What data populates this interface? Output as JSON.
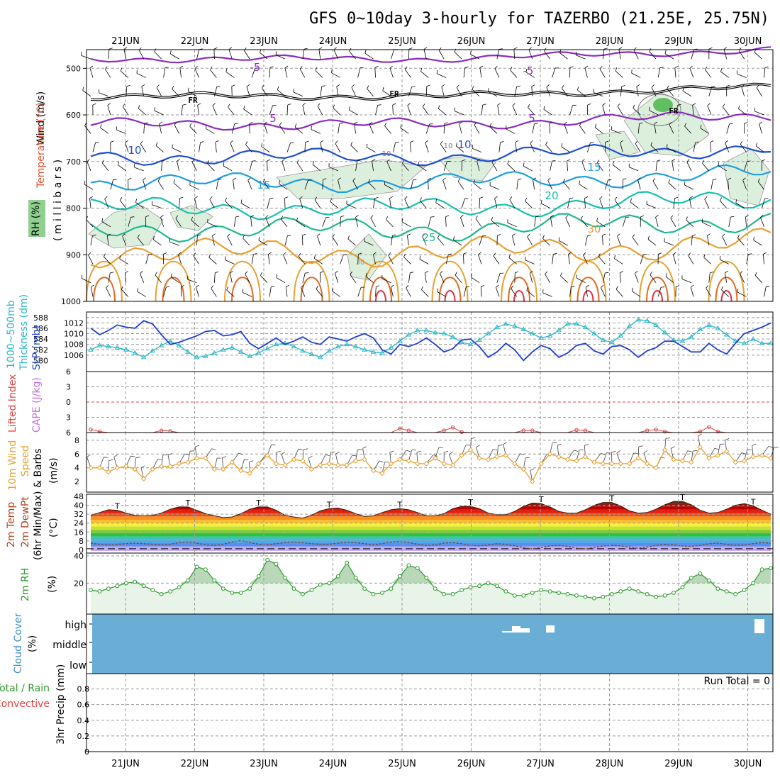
{
  "title": "GFS 0~10day 3-hourly for TAZERBO (21.25E, 25.75N)",
  "dates": [
    "21JUN",
    "22JUN",
    "23JUN",
    "24JUN",
    "25JUN",
    "26JUN",
    "27JUN",
    "28JUN",
    "29JUN",
    "30JUN"
  ],
  "panel_labels": {
    "upper": {
      "wind": "Wind (m/s)",
      "temperature": "Temperature (°C)",
      "rh": "RH (%)",
      "pressure": "( m i l l i b a r s )"
    },
    "slp": {
      "thick": "1000~500mb",
      "thick2": "Thickness (dm)",
      "slp": "SLP (mb)"
    },
    "li": {
      "li": "Lifted Index",
      "cape": "CAPE (J/kg)"
    },
    "wind10": {
      "l1": "10m Wind",
      "l2": "Speed",
      "l3": "& Barbs",
      "l4": "(m/s)"
    },
    "temp2m": {
      "l1": "2m Temp",
      "l2": "2m DewPt",
      "l3": "(6hr Min/Max)",
      "l4": "(°C)"
    },
    "rh2m": {
      "l1": "2m RH",
      "l2": "(%)"
    },
    "cloud": {
      "l1": "Cloud Cover",
      "l2": "(%)",
      "high": "high",
      "middle": "middle",
      "low": "low"
    },
    "precip": {
      "l1": "Total / Rain",
      "l2": "Convective",
      "l3": "3hr Precip (mm)",
      "run_total": "Run Total = 0"
    }
  },
  "colors": {
    "slp": "#1f3fd0",
    "thickness": "#28b8c8",
    "wind": "#e8a030",
    "rh": "#2e9a2e",
    "cloud_fill": "#6aaed6",
    "li": "#e04040",
    "cape": "#c070e0"
  },
  "chart_data": [
    {
      "type": "line",
      "panel": "upper-air time-height cross section",
      "y_axis": {
        "label": "millibars",
        "ticks": [
          500,
          600,
          700,
          800,
          900,
          1000
        ],
        "range": [
          1000,
          460
        ]
      },
      "contour_labels": [
        {
          "value": "-5",
          "level": "-5"
        },
        {
          "value": "-5",
          "level": "-5"
        },
        {
          "value": "FR",
          "level": "FR"
        },
        {
          "value": "FR",
          "level": "FR"
        },
        {
          "value": "FR",
          "level": "FR"
        },
        {
          "value": "5",
          "level": "5"
        },
        {
          "value": "5",
          "level": "5"
        },
        {
          "value": "10",
          "level": "10"
        },
        {
          "value": "10",
          "level": "10"
        },
        {
          "value": "15",
          "level": "15"
        },
        {
          "value": "15",
          "level": "15"
        },
        {
          "value": "20",
          "level": "20"
        },
        {
          "value": "25",
          "level": "25"
        },
        {
          "value": "30",
          "level": "30"
        },
        {
          "value": "10",
          "level": "10-rh"
        },
        {
          "value": "10",
          "level": "10-rh"
        },
        {
          "value": "30",
          "level": "30-rh"
        }
      ]
    },
    {
      "type": "line",
      "panel": "SLP and 1000-500mb thickness",
      "thickness_ticks": [
        580,
        582,
        584,
        586,
        588
      ],
      "slp_ticks": [
        1006,
        1008,
        1010,
        1012
      ],
      "series": [
        {
          "name": "SLP (mb)",
          "values": [
            1011.0,
            1009.8,
            1010.6,
            1011.6,
            1011.2,
            1011.0,
            1012.4,
            1011.8,
            1009.8,
            1008.0,
            1008.4,
            1009.0,
            1009.6,
            1010.4,
            1010.6,
            1009.6,
            1009.8,
            1010.4,
            1008.2,
            1007.2,
            1008.2,
            1009.2,
            1008.0,
            1008.6,
            1009.4,
            1008.4,
            1008.0,
            1009.4,
            1009.0,
            1008.6,
            1009.4,
            1010.0,
            1009.2,
            1007.0,
            1006.2,
            1008.0,
            1007.6,
            1008.2,
            1009.2,
            1008.0,
            1006.6,
            1007.2,
            1008.8,
            1009.0,
            1007.6,
            1005.6,
            1006.6,
            1008.2,
            1007.0,
            1005.0,
            1006.6,
            1007.8,
            1007.2,
            1005.6,
            1006.4,
            1007.8,
            1008.2,
            1006.8,
            1006.2,
            1007.6,
            1007.8,
            1007.0,
            1005.6,
            1006.8,
            1007.4,
            1008.6,
            1008.6,
            1007.6,
            1006.6,
            1006.6,
            1008.2,
            1007.0,
            1006.2,
            1008.2,
            1010.0,
            1010.6,
            1011.2,
            1012.0
          ]
        },
        {
          "name": "1000~500mb Thickness (dm)",
          "values": [
            582.0,
            582.8,
            582.6,
            582.4,
            582.0,
            581.4,
            580.6,
            581.8,
            582.8,
            583.6,
            582.8,
            581.6,
            580.6,
            580.8,
            581.4,
            582.0,
            582.4,
            581.6,
            580.8,
            581.4,
            582.2,
            583.0,
            583.2,
            582.6,
            581.8,
            581.2,
            580.6,
            581.8,
            582.6,
            583.0,
            582.6,
            582.0,
            581.6,
            581.4,
            582.4,
            583.6,
            584.8,
            585.6,
            585.6,
            585.2,
            585.0,
            584.4,
            583.4,
            583.0,
            583.8,
            585.0,
            586.2,
            586.8,
            586.4,
            585.8,
            585.0,
            584.2,
            584.6,
            585.6,
            586.8,
            586.8,
            586.2,
            585.0,
            583.8,
            583.4,
            584.6,
            586.4,
            587.6,
            587.4,
            586.6,
            585.2,
            583.8,
            583.6,
            584.4,
            585.8,
            586.6,
            586.0,
            584.8,
            583.6,
            583.2,
            584.0,
            583.2,
            583.2
          ]
        }
      ]
    },
    {
      "type": "line",
      "panel": "Lifted Index and CAPE",
      "y_ticks": [
        -6,
        -3,
        0,
        3,
        6
      ],
      "series": [
        {
          "name": "Lifted Index",
          "values": [
            5.4,
            5.8,
            6.0,
            6.0,
            6.0,
            6.0,
            6.0,
            6.0,
            5.6,
            5.7,
            6.0,
            6.0,
            6.0,
            6.0,
            6.0,
            6.0,
            6.0,
            6.0,
            6.0,
            6.0,
            6.0,
            6.0,
            6.0,
            6.0,
            6.0,
            6.0,
            6.0,
            6.0,
            6.0,
            6.0,
            6.0,
            6.0,
            6.0,
            6.0,
            6.0,
            5.2,
            5.6,
            6.0,
            6.0,
            6.0,
            5.6,
            5.0,
            5.9,
            6.0,
            6.0,
            6.0,
            6.0,
            6.0,
            6.0,
            5.6,
            5.6,
            6.0,
            6.0,
            6.0,
            6.0,
            5.5,
            5.6,
            6.0,
            6.0,
            6.0,
            6.0,
            6.0,
            6.0,
            5.6,
            5.4,
            5.8,
            6.0,
            6.0,
            6.0,
            5.8,
            4.9,
            5.8,
            6.0,
            6.0,
            6.0,
            6.0,
            6.0,
            6.0
          ]
        }
      ]
    },
    {
      "type": "line",
      "panel": "10m Wind Speed and Barbs",
      "y_ticks": [
        2,
        4,
        6,
        8
      ],
      "series": [
        {
          "name": "10m Wind Speed (m/s)",
          "values": [
            4.0,
            4.0,
            3.4,
            4.0,
            4.2,
            3.8,
            2.4,
            3.8,
            4.2,
            4.2,
            4.6,
            4.8,
            5.4,
            5.4,
            3.8,
            3.8,
            4.8,
            3.6,
            3.2,
            4.6,
            5.8,
            4.6,
            4.4,
            5.2,
            5.0,
            3.8,
            4.4,
            4.6,
            4.4,
            4.4,
            5.0,
            5.2,
            3.6,
            3.2,
            4.6,
            5.2,
            5.0,
            4.6,
            4.6,
            5.4,
            4.6,
            4.4,
            5.8,
            6.6,
            5.4,
            5.2,
            5.6,
            5.8,
            4.6,
            3.8,
            2.0,
            4.6,
            6.0,
            5.6,
            5.2,
            5.0,
            5.6,
            4.8,
            4.6,
            4.6,
            4.6,
            4.6,
            5.4,
            4.6,
            4.0,
            6.6,
            5.2,
            5.0,
            4.8,
            7.0,
            5.4,
            5.8,
            6.4,
            4.8,
            5.0,
            5.6,
            5.8,
            5.4
          ]
        }
      ]
    },
    {
      "type": "area",
      "panel": "2m Temp and 2m DewPt",
      "y_ticks": [
        0,
        8,
        16,
        24,
        32,
        40,
        48
      ],
      "series": [
        {
          "name": "2m Temp (°C)",
          "values": [
            31.0,
            33.5,
            36.0,
            35.5,
            33.0,
            31.0,
            30.5,
            31.0,
            33.0,
            36.5,
            38.5,
            38.5,
            35.5,
            32.5,
            30.5,
            29.0,
            29.5,
            32.5,
            36.5,
            38.5,
            38.5,
            35.5,
            31.0,
            29.5,
            28.5,
            31.0,
            35.0,
            37.0,
            37.5,
            35.5,
            32.5,
            30.0,
            30.5,
            33.5,
            36.0,
            37.0,
            36.0,
            33.5,
            30.5,
            30.5,
            32.5,
            37.0,
            39.0,
            39.0,
            37.0,
            33.0,
            31.5,
            31.5,
            34.5,
            39.0,
            42.0,
            41.5,
            38.5,
            34.5,
            33.0,
            33.0,
            36.0,
            40.0,
            42.5,
            42.5,
            39.5,
            35.0,
            33.0,
            33.5,
            36.5,
            40.5,
            43.5,
            43.5,
            40.5,
            35.5,
            33.0,
            33.5,
            36.5,
            40.0,
            41.5,
            39.5,
            35.5,
            32.0
          ]
        },
        {
          "name": "2m DewPt (°C)",
          "values": [
            6.0,
            5.0,
            4.5,
            5.0,
            5.5,
            6.0,
            5.5,
            5.0,
            4.5,
            5.0,
            6.5,
            7.0,
            6.0,
            4.5,
            4.0,
            5.0,
            7.0,
            8.5,
            6.5,
            5.0,
            4.5,
            5.5,
            6.5,
            7.0,
            6.5,
            5.5,
            5.0,
            5.0,
            6.0,
            7.0,
            6.5,
            5.5,
            4.5,
            5.5,
            7.0,
            7.5,
            6.5,
            5.0,
            4.0,
            4.5,
            6.0,
            6.5,
            5.5,
            4.0,
            3.5,
            4.5,
            5.5,
            5.0,
            3.5,
            2.0,
            1.0,
            2.0,
            3.5,
            4.0,
            3.0,
            1.5,
            1.0,
            2.0,
            3.5,
            4.0,
            3.5,
            2.5,
            1.5,
            2.5,
            4.0,
            5.0,
            4.5,
            3.5,
            3.0,
            4.0,
            5.5,
            6.0,
            5.0,
            4.0,
            4.5,
            5.5,
            6.5,
            6.0
          ]
        }
      ]
    },
    {
      "type": "area",
      "panel": "2m RH",
      "y_ticks": [
        20,
        40
      ],
      "series": [
        {
          "name": "2m RH (%)",
          "values": [
            15,
            14,
            16,
            18,
            20,
            21,
            18,
            15,
            12,
            14,
            17,
            22,
            32,
            30,
            22,
            16,
            13,
            13,
            16,
            25,
            37,
            34,
            24,
            16,
            12,
            15,
            19,
            20,
            25,
            35,
            24,
            16,
            12,
            13,
            16,
            25,
            33,
            31,
            24,
            16,
            12,
            12,
            15,
            17,
            18,
            20,
            18,
            14,
            11,
            11,
            13,
            15,
            14,
            13,
            12,
            11,
            10,
            9,
            10,
            12,
            14,
            16,
            14,
            12,
            10,
            11,
            13,
            17,
            24,
            27,
            22,
            16,
            14,
            12,
            15,
            20,
            30,
            31
          ]
        }
      ]
    },
    {
      "type": "heatmap",
      "panel": "Cloud Cover",
      "rows": [
        "high",
        "middle",
        "low"
      ],
      "notes": "clear sky except scattered high cloud near 26-27JUN and at 30JUN"
    },
    {
      "type": "bar",
      "panel": "3hr Precip",
      "y_ticks": [
        0,
        0.2,
        0.4,
        0.6,
        0.8
      ],
      "series": [
        {
          "name": "3hr Precip (mm)",
          "values": []
        }
      ]
    }
  ]
}
